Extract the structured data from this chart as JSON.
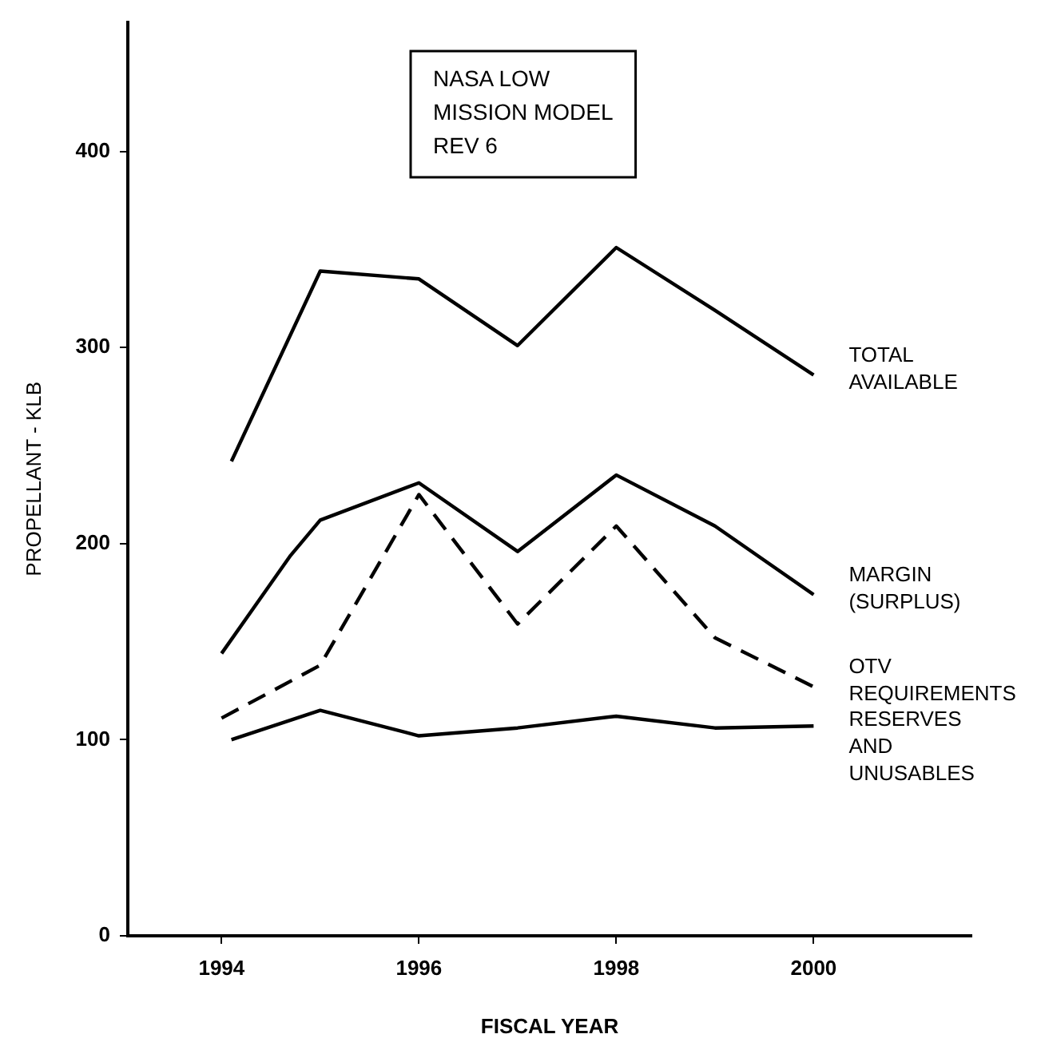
{
  "chart_data": {
    "type": "line",
    "xlabel": "FISCAL YEAR",
    "ylabel": "PROPELLANT - KLB",
    "annotations": [
      "NASA LOW\nMISSION MODEL\nREV 6"
    ],
    "xlim": [
      1993.05,
      2001.6
    ],
    "xticks": [
      1994,
      1996,
      1998,
      2000
    ],
    "ylim": [
      0,
      466
    ],
    "yticks": [
      0,
      100,
      200,
      300,
      400
    ],
    "grid": false,
    "legend": false,
    "marker": "none",
    "series": [
      {
        "name": "TOTAL AVAILABLE",
        "color": "#000000",
        "line_style": "solid",
        "x": [
          1994.1,
          1995,
          1996,
          1997,
          1998,
          1999,
          2000
        ],
        "values": [
          242,
          339,
          335,
          301,
          351,
          319,
          286
        ]
      },
      {
        "name": "MARGIN (SURPLUS)",
        "color": "#000000",
        "line_style": "solid",
        "x": [
          1994,
          1994.7,
          1995,
          1996,
          1997,
          1998,
          1999,
          2000
        ],
        "values": [
          144,
          194,
          212,
          231,
          196,
          235,
          209,
          174
        ]
      },
      {
        "name": "OTV REQUIREMENTS",
        "color": "#000000",
        "line_style": "dashed",
        "x": [
          1994,
          1995,
          1996,
          1997,
          1998,
          1999,
          2000
        ],
        "values": [
          111,
          138,
          225,
          159,
          209,
          152,
          127
        ]
      },
      {
        "name": "RESERVES AND UNUSABLES",
        "color": "#000000",
        "line_style": "solid",
        "x": [
          1994.1,
          1995,
          1996,
          1997,
          1998,
          1999,
          2000
        ],
        "values": [
          100,
          115,
          102,
          106,
          112,
          106,
          107
        ]
      }
    ]
  }
}
